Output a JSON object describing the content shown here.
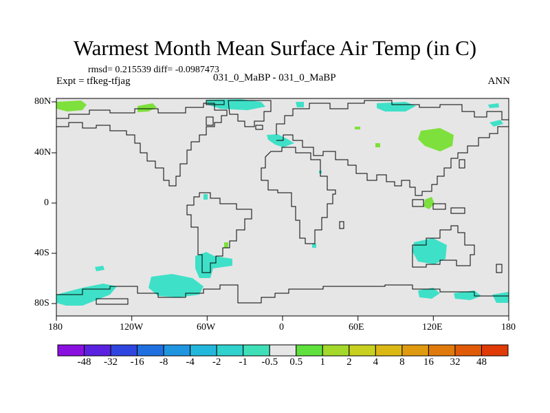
{
  "header": {
    "title": "Warmest Month Mean Surface Air Temp (in C)",
    "stats": "rmsd= 0.215539 diff= -0.0987473",
    "experiment": "Expt = tfkeg-tfjag",
    "case": "031_0_MaBP - 031_0_MaBP",
    "season": "ANN"
  },
  "map": {
    "lon_ticks": [
      "180",
      "120W",
      "60W",
      "0",
      "60E",
      "120E",
      "180"
    ],
    "lat_ticks": [
      "80N",
      "40N",
      "0",
      "40S",
      "80S"
    ],
    "colors": {
      "background": "#e6e6e6",
      "land_outline": "#000000",
      "neg_anomaly": "#3fe0c8",
      "pos_anomaly": "#7ee03c"
    }
  },
  "colorbar": {
    "colors": [
      "#8a10e0",
      "#5a22e0",
      "#2f45e0",
      "#1f6fe0",
      "#1f95e0",
      "#24b7dc",
      "#2fd2cc",
      "#3fe0b8",
      "#e6e6e6",
      "#5fe03c",
      "#a4d82a",
      "#c8d020",
      "#dcb814",
      "#e09a10",
      "#e07a0c",
      "#e05a08",
      "#e03a06"
    ],
    "labels": [
      "-48",
      "-32",
      "-16",
      "-8",
      "-4",
      "-2",
      "-1",
      "-0.5",
      "0.5",
      "1",
      "2",
      "4",
      "8",
      "16",
      "32",
      "48"
    ]
  }
}
